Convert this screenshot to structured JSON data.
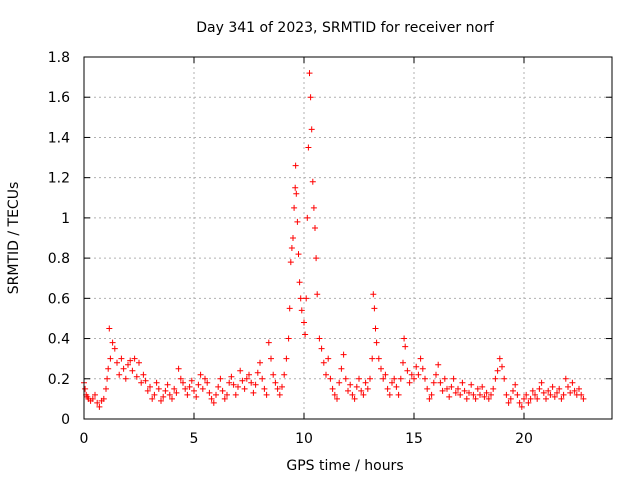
{
  "chart_data": {
    "type": "scatter",
    "title": "Day 341 of 2023, SRMTID for receiver norf",
    "xlabel": "GPS time / hours",
    "ylabel": "SRMTID / TECUs",
    "xlim": [
      0,
      24
    ],
    "ylim": [
      0,
      1.8
    ],
    "x_ticks": [
      0,
      5,
      10,
      15,
      20
    ],
    "y_ticks": [
      0,
      0.2,
      0.4,
      0.6,
      0.8,
      1,
      1.2,
      1.4,
      1.6,
      1.8
    ],
    "x_tick_labels": [
      "0",
      "5",
      "10",
      "15",
      "20"
    ],
    "y_tick_labels": [
      "0",
      "0.2",
      "0.4",
      "0.6",
      "0.8",
      "1",
      "1.2",
      "1.4",
      "1.6",
      "1.8"
    ],
    "grid": true,
    "marker": "+",
    "color": "#ff0000",
    "series": [
      {
        "name": "SRMTID",
        "points": [
          [
            0.0,
            0.18
          ],
          [
            0.05,
            0.15
          ],
          [
            0.1,
            0.12
          ],
          [
            0.15,
            0.11
          ],
          [
            0.2,
            0.1
          ],
          [
            0.3,
            0.09
          ],
          [
            0.4,
            0.1
          ],
          [
            0.5,
            0.12
          ],
          [
            0.6,
            0.08
          ],
          [
            0.7,
            0.06
          ],
          [
            0.8,
            0.09
          ],
          [
            0.9,
            0.1
          ],
          [
            1.0,
            0.15
          ],
          [
            1.05,
            0.2
          ],
          [
            1.1,
            0.25
          ],
          [
            1.15,
            0.45
          ],
          [
            1.2,
            0.3
          ],
          [
            1.3,
            0.38
          ],
          [
            1.4,
            0.35
          ],
          [
            1.5,
            0.28
          ],
          [
            1.6,
            0.22
          ],
          [
            1.7,
            0.3
          ],
          [
            1.8,
            0.25
          ],
          [
            1.9,
            0.2
          ],
          [
            2.0,
            0.27
          ],
          [
            2.1,
            0.29
          ],
          [
            2.2,
            0.24
          ],
          [
            2.3,
            0.3
          ],
          [
            2.4,
            0.21
          ],
          [
            2.5,
            0.28
          ],
          [
            2.6,
            0.18
          ],
          [
            2.7,
            0.22
          ],
          [
            2.8,
            0.19
          ],
          [
            2.9,
            0.14
          ],
          [
            3.0,
            0.16
          ],
          [
            3.1,
            0.1
          ],
          [
            3.2,
            0.12
          ],
          [
            3.3,
            0.18
          ],
          [
            3.4,
            0.15
          ],
          [
            3.5,
            0.09
          ],
          [
            3.6,
            0.11
          ],
          [
            3.7,
            0.14
          ],
          [
            3.8,
            0.17
          ],
          [
            3.9,
            0.12
          ],
          [
            4.0,
            0.1
          ],
          [
            4.1,
            0.15
          ],
          [
            4.2,
            0.13
          ],
          [
            4.3,
            0.25
          ],
          [
            4.4,
            0.2
          ],
          [
            4.5,
            0.18
          ],
          [
            4.6,
            0.15
          ],
          [
            4.7,
            0.12
          ],
          [
            4.8,
            0.16
          ],
          [
            4.9,
            0.19
          ],
          [
            5.0,
            0.14
          ],
          [
            5.1,
            0.11
          ],
          [
            5.2,
            0.17
          ],
          [
            5.3,
            0.22
          ],
          [
            5.4,
            0.15
          ],
          [
            5.5,
            0.2
          ],
          [
            5.6,
            0.18
          ],
          [
            5.7,
            0.13
          ],
          [
            5.8,
            0.1
          ],
          [
            5.9,
            0.08
          ],
          [
            6.0,
            0.12
          ],
          [
            6.1,
            0.16
          ],
          [
            6.2,
            0.2
          ],
          [
            6.3,
            0.14
          ],
          [
            6.4,
            0.1
          ],
          [
            6.5,
            0.12
          ],
          [
            6.6,
            0.18
          ],
          [
            6.7,
            0.21
          ],
          [
            6.8,
            0.17
          ],
          [
            6.9,
            0.12
          ],
          [
            7.0,
            0.16
          ],
          [
            7.1,
            0.24
          ],
          [
            7.2,
            0.19
          ],
          [
            7.3,
            0.15
          ],
          [
            7.4,
            0.2
          ],
          [
            7.5,
            0.22
          ],
          [
            7.6,
            0.18
          ],
          [
            7.7,
            0.13
          ],
          [
            7.8,
            0.17
          ],
          [
            7.9,
            0.23
          ],
          [
            8.0,
            0.28
          ],
          [
            8.1,
            0.2
          ],
          [
            8.2,
            0.15
          ],
          [
            8.3,
            0.12
          ],
          [
            8.4,
            0.38
          ],
          [
            8.5,
            0.3
          ],
          [
            8.6,
            0.22
          ],
          [
            8.7,
            0.18
          ],
          [
            8.8,
            0.15
          ],
          [
            8.9,
            0.12
          ],
          [
            9.0,
            0.16
          ],
          [
            9.1,
            0.22
          ],
          [
            9.2,
            0.3
          ],
          [
            9.3,
            0.4
          ],
          [
            9.35,
            0.55
          ],
          [
            9.4,
            0.78
          ],
          [
            9.45,
            0.85
          ],
          [
            9.5,
            0.9
          ],
          [
            9.55,
            1.05
          ],
          [
            9.6,
            1.15
          ],
          [
            9.62,
            1.26
          ],
          [
            9.65,
            1.12
          ],
          [
            9.7,
            0.98
          ],
          [
            9.75,
            0.82
          ],
          [
            9.8,
            0.68
          ],
          [
            9.85,
            0.6
          ],
          [
            9.9,
            0.54
          ],
          [
            10.0,
            0.48
          ],
          [
            10.05,
            0.42
          ],
          [
            10.1,
            0.6
          ],
          [
            10.15,
            1.0
          ],
          [
            10.2,
            1.35
          ],
          [
            10.25,
            1.72
          ],
          [
            10.3,
            1.6
          ],
          [
            10.35,
            1.44
          ],
          [
            10.4,
            1.18
          ],
          [
            10.45,
            1.05
          ],
          [
            10.5,
            0.95
          ],
          [
            10.55,
            0.8
          ],
          [
            10.6,
            0.62
          ],
          [
            10.7,
            0.4
          ],
          [
            10.8,
            0.35
          ],
          [
            10.9,
            0.28
          ],
          [
            11.0,
            0.22
          ],
          [
            11.1,
            0.3
          ],
          [
            11.2,
            0.2
          ],
          [
            11.3,
            0.15
          ],
          [
            11.4,
            0.12
          ],
          [
            11.5,
            0.1
          ],
          [
            11.6,
            0.18
          ],
          [
            11.7,
            0.25
          ],
          [
            11.8,
            0.32
          ],
          [
            11.9,
            0.2
          ],
          [
            12.0,
            0.14
          ],
          [
            12.1,
            0.17
          ],
          [
            12.2,
            0.12
          ],
          [
            12.3,
            0.1
          ],
          [
            12.4,
            0.16
          ],
          [
            12.5,
            0.2
          ],
          [
            12.6,
            0.14
          ],
          [
            12.7,
            0.12
          ],
          [
            12.8,
            0.18
          ],
          [
            12.9,
            0.15
          ],
          [
            13.0,
            0.2
          ],
          [
            13.1,
            0.3
          ],
          [
            13.15,
            0.62
          ],
          [
            13.2,
            0.55
          ],
          [
            13.25,
            0.45
          ],
          [
            13.3,
            0.38
          ],
          [
            13.4,
            0.3
          ],
          [
            13.5,
            0.25
          ],
          [
            13.6,
            0.2
          ],
          [
            13.7,
            0.22
          ],
          [
            13.8,
            0.15
          ],
          [
            13.9,
            0.12
          ],
          [
            14.0,
            0.18
          ],
          [
            14.1,
            0.2
          ],
          [
            14.2,
            0.16
          ],
          [
            14.3,
            0.12
          ],
          [
            14.4,
            0.2
          ],
          [
            14.5,
            0.28
          ],
          [
            14.55,
            0.4
          ],
          [
            14.6,
            0.36
          ],
          [
            14.7,
            0.24
          ],
          [
            14.8,
            0.18
          ],
          [
            14.9,
            0.22
          ],
          [
            15.0,
            0.2
          ],
          [
            15.1,
            0.26
          ],
          [
            15.2,
            0.22
          ],
          [
            15.3,
            0.3
          ],
          [
            15.4,
            0.25
          ],
          [
            15.5,
            0.2
          ],
          [
            15.6,
            0.15
          ],
          [
            15.7,
            0.1
          ],
          [
            15.8,
            0.12
          ],
          [
            15.9,
            0.18
          ],
          [
            16.0,
            0.22
          ],
          [
            16.1,
            0.27
          ],
          [
            16.2,
            0.18
          ],
          [
            16.3,
            0.14
          ],
          [
            16.4,
            0.2
          ],
          [
            16.5,
            0.15
          ],
          [
            16.6,
            0.11
          ],
          [
            16.7,
            0.16
          ],
          [
            16.8,
            0.2
          ],
          [
            16.9,
            0.13
          ],
          [
            17.0,
            0.15
          ],
          [
            17.1,
            0.12
          ],
          [
            17.2,
            0.18
          ],
          [
            17.3,
            0.14
          ],
          [
            17.4,
            0.1
          ],
          [
            17.5,
            0.13
          ],
          [
            17.6,
            0.17
          ],
          [
            17.7,
            0.12
          ],
          [
            17.8,
            0.1
          ],
          [
            17.9,
            0.15
          ],
          [
            18.0,
            0.12
          ],
          [
            18.1,
            0.16
          ],
          [
            18.2,
            0.11
          ],
          [
            18.3,
            0.13
          ],
          [
            18.4,
            0.1
          ],
          [
            18.5,
            0.12
          ],
          [
            18.6,
            0.15
          ],
          [
            18.7,
            0.2
          ],
          [
            18.8,
            0.24
          ],
          [
            18.9,
            0.3
          ],
          [
            19.0,
            0.26
          ],
          [
            19.1,
            0.2
          ],
          [
            19.2,
            0.12
          ],
          [
            19.3,
            0.08
          ],
          [
            19.4,
            0.1
          ],
          [
            19.5,
            0.14
          ],
          [
            19.6,
            0.17
          ],
          [
            19.7,
            0.12
          ],
          [
            19.8,
            0.08
          ],
          [
            19.9,
            0.06
          ],
          [
            20.0,
            0.1
          ],
          [
            20.1,
            0.12
          ],
          [
            20.2,
            0.08
          ],
          [
            20.3,
            0.1
          ],
          [
            20.4,
            0.14
          ],
          [
            20.5,
            0.12
          ],
          [
            20.6,
            0.1
          ],
          [
            20.7,
            0.15
          ],
          [
            20.8,
            0.18
          ],
          [
            20.9,
            0.13
          ],
          [
            21.0,
            0.1
          ],
          [
            21.1,
            0.14
          ],
          [
            21.2,
            0.12
          ],
          [
            21.3,
            0.16
          ],
          [
            21.4,
            0.11
          ],
          [
            21.5,
            0.13
          ],
          [
            21.6,
            0.15
          ],
          [
            21.7,
            0.1
          ],
          [
            21.8,
            0.12
          ],
          [
            21.9,
            0.2
          ],
          [
            22.0,
            0.16
          ],
          [
            22.1,
            0.13
          ],
          [
            22.2,
            0.18
          ],
          [
            22.3,
            0.14
          ],
          [
            22.4,
            0.12
          ],
          [
            22.5,
            0.15
          ],
          [
            22.6,
            0.12
          ],
          [
            22.7,
            0.1
          ]
        ]
      }
    ]
  }
}
